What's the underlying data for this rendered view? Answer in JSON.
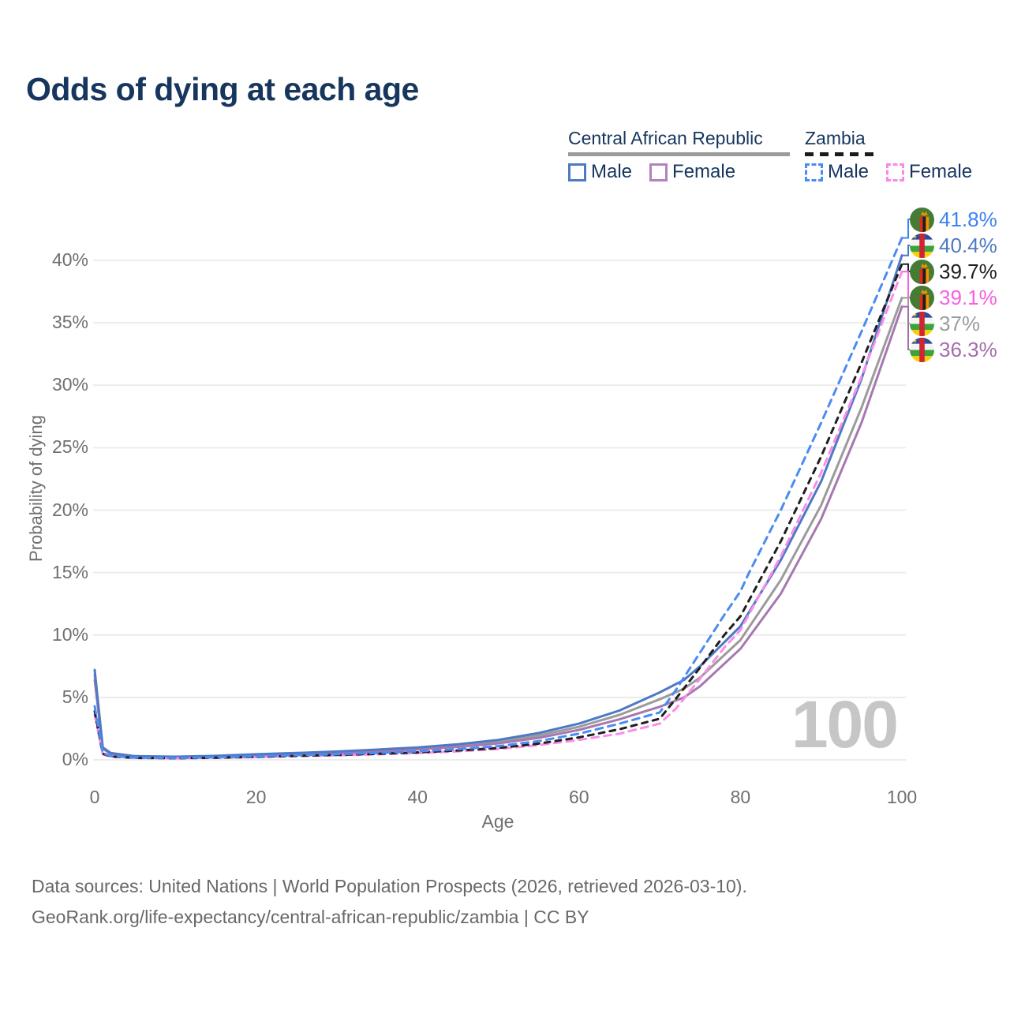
{
  "page": {
    "title": "Odds of dying at each age",
    "watermark": "100",
    "footer_line1": "Data sources: United Nations | World Population Prospects (2026, retrieved 2026-03-10).",
    "footer_line2": "GeoRank.org/life-expectancy/central-african-republic/zambia | CC BY"
  },
  "legend": {
    "groups": [
      {
        "name": "Central African Republic",
        "line_style": "solid",
        "line_color": "#9b9b9b",
        "items": [
          {
            "label": "Male",
            "swatch_color": "#4e79c4",
            "swatch_style": "solid"
          },
          {
            "label": "Female",
            "swatch_color": "#b283bb",
            "swatch_style": "solid"
          }
        ]
      },
      {
        "name": "Zambia",
        "line_style": "dashed",
        "line_color": "#1c1c1c",
        "items": [
          {
            "label": "Male",
            "swatch_color": "#4b8bf3",
            "swatch_style": "dashed"
          },
          {
            "label": "Female",
            "swatch_color": "#fb87e7",
            "swatch_style": "dashed"
          }
        ]
      }
    ]
  },
  "chart_data": {
    "type": "line",
    "title": "Odds of dying at each age",
    "xlabel": "Age",
    "ylabel": "Probability of dying",
    "xlim": [
      0,
      100
    ],
    "ylim": [
      0,
      40
    ],
    "x_ticks": [
      0,
      20,
      40,
      60,
      80,
      100
    ],
    "y_ticks": [
      0,
      5,
      10,
      15,
      20,
      25,
      30,
      35,
      40
    ],
    "y_tick_suffix": "%",
    "grid": true,
    "legend_position": "top-right",
    "series": [
      {
        "key": "car_all",
        "name": "Central African Republic — Both sexes",
        "color": "#9b9b9b",
        "dash": null,
        "x": [
          0,
          1,
          2,
          5,
          10,
          15,
          20,
          25,
          30,
          35,
          40,
          45,
          50,
          55,
          60,
          65,
          70,
          73,
          75,
          80,
          85,
          90,
          95,
          100
        ],
        "y": [
          6.8,
          0.95,
          0.5,
          0.28,
          0.23,
          0.29,
          0.4,
          0.5,
          0.6,
          0.74,
          0.92,
          1.14,
          1.45,
          1.95,
          2.65,
          3.6,
          4.85,
          5.7,
          6.6,
          9.6,
          14.4,
          20.4,
          28.2,
          37.0
        ]
      },
      {
        "key": "car_female",
        "name": "Central African Republic — Female",
        "color": "#a678b0",
        "dash": null,
        "x": [
          0,
          1,
          2,
          5,
          10,
          15,
          20,
          25,
          30,
          35,
          40,
          45,
          50,
          55,
          60,
          65,
          70,
          73,
          75,
          80,
          85,
          90,
          95,
          100
        ],
        "y": [
          6.4,
          0.9,
          0.48,
          0.27,
          0.22,
          0.26,
          0.36,
          0.45,
          0.54,
          0.66,
          0.84,
          1.04,
          1.32,
          1.76,
          2.4,
          3.25,
          4.25,
          5.0,
          5.9,
          8.9,
          13.3,
          19.3,
          27.0,
          36.3
        ]
      },
      {
        "key": "car_male",
        "name": "Central African Republic — Male",
        "color": "#4e79c4",
        "dash": null,
        "x": [
          0,
          1,
          2,
          5,
          10,
          15,
          20,
          25,
          30,
          35,
          40,
          45,
          50,
          55,
          60,
          65,
          70,
          73,
          75,
          80,
          85,
          90,
          95,
          100
        ],
        "y": [
          7.2,
          1.0,
          0.55,
          0.3,
          0.25,
          0.32,
          0.45,
          0.55,
          0.67,
          0.82,
          1.0,
          1.25,
          1.6,
          2.15,
          2.9,
          3.95,
          5.4,
          6.4,
          7.5,
          10.7,
          16.0,
          22.3,
          30.5,
          40.4
        ]
      },
      {
        "key": "zambia_female",
        "name": "Zambia — Female",
        "color": "#fb8ce8",
        "dash": "9 7",
        "x": [
          0,
          1,
          2,
          5,
          10,
          15,
          20,
          25,
          30,
          35,
          40,
          45,
          50,
          55,
          60,
          65,
          70,
          72,
          75,
          78,
          80,
          85,
          90,
          95,
          100
        ],
        "y": [
          3.6,
          0.45,
          0.25,
          0.15,
          0.12,
          0.16,
          0.22,
          0.29,
          0.36,
          0.44,
          0.54,
          0.68,
          0.87,
          1.18,
          1.6,
          2.1,
          2.9,
          4.1,
          6.5,
          9.0,
          10.4,
          16.3,
          23.0,
          30.7,
          39.1
        ]
      },
      {
        "key": "zambia_all",
        "name": "Zambia — Both sexes",
        "color": "#1f1f1f",
        "dash": "7 7",
        "x": [
          0,
          1,
          2,
          5,
          10,
          15,
          20,
          25,
          30,
          35,
          40,
          45,
          50,
          55,
          60,
          65,
          70,
          72,
          75,
          78,
          80,
          85,
          90,
          95,
          100
        ],
        "y": [
          3.9,
          0.5,
          0.27,
          0.16,
          0.13,
          0.17,
          0.24,
          0.32,
          0.4,
          0.48,
          0.6,
          0.75,
          0.95,
          1.3,
          1.8,
          2.45,
          3.3,
          4.9,
          7.4,
          10.0,
          11.5,
          17.5,
          24.3,
          31.8,
          39.7
        ]
      },
      {
        "key": "zambia_male",
        "name": "Zambia — Male",
        "color": "#4b8bf3",
        "dash": "9 7",
        "x": [
          0,
          1,
          2,
          5,
          10,
          15,
          20,
          25,
          30,
          35,
          40,
          45,
          50,
          55,
          60,
          65,
          70,
          72,
          75,
          78,
          80,
          81,
          85,
          90,
          95,
          100
        ],
        "y": [
          4.3,
          0.55,
          0.3,
          0.18,
          0.15,
          0.2,
          0.28,
          0.37,
          0.45,
          0.55,
          0.68,
          0.85,
          1.1,
          1.5,
          2.1,
          2.9,
          3.8,
          5.6,
          8.6,
          11.6,
          13.5,
          14.9,
          20.0,
          27.0,
          34.3,
          41.8
        ]
      }
    ],
    "end_labels": [
      {
        "series": "zambia_male",
        "text": "41.8%",
        "color": "#3f83f0",
        "flag": "zambia"
      },
      {
        "series": "car_male",
        "text": "40.4%",
        "color": "#4e79c4",
        "flag": "car"
      },
      {
        "series": "zambia_all",
        "text": "39.7%",
        "color": "#1f1f1f",
        "flag": "zambia"
      },
      {
        "series": "zambia_female",
        "text": "39.1%",
        "color": "#f75fe1",
        "flag": "zambia"
      },
      {
        "series": "car_all",
        "text": "37%",
        "color": "#9b9b9b",
        "flag": "car"
      },
      {
        "series": "car_female",
        "text": "36.3%",
        "color": "#a36dac",
        "flag": "car"
      }
    ]
  }
}
